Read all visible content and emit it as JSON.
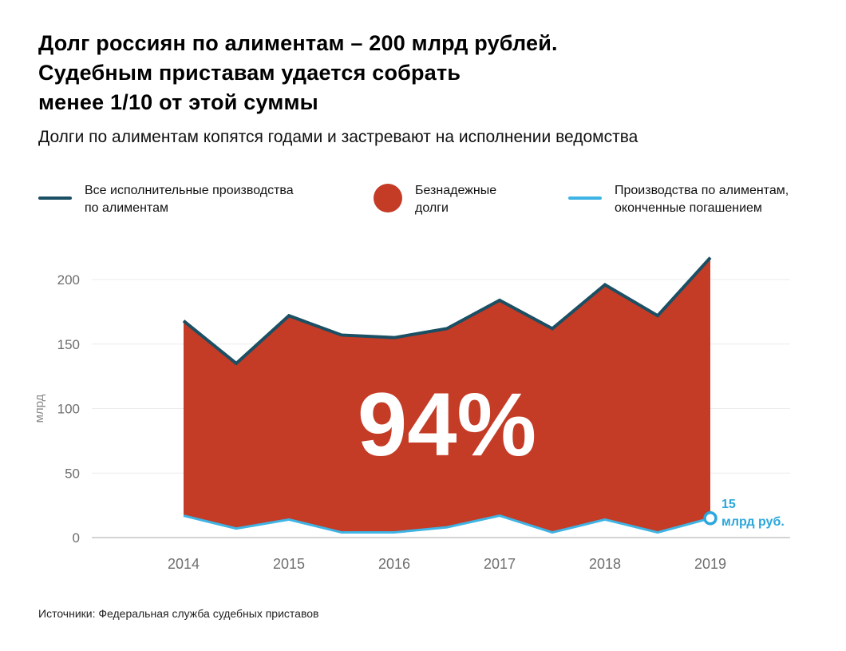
{
  "header": {
    "title": "Долг россиян по алиментам – 200 млрд рублей.\nСудебным приставам удается собрать\nменее 1/10 от этой суммы",
    "subtitle": "Долги по алиментам копятся годами и застревают на исполнении ведомства"
  },
  "legend": {
    "items": [
      {
        "label": "Все исполнительные производства\nпо алиментам",
        "swatch": "line",
        "color": "#1b4f63"
      },
      {
        "label": "Безнадежные\nдолги",
        "swatch": "circle",
        "color": "#c43b26"
      },
      {
        "label": "Производства по алиментам,\nоконченные погашением",
        "swatch": "line",
        "color": "#3eb4e4"
      }
    ]
  },
  "chart_data": {
    "type": "area",
    "x": [
      2014,
      2014.5,
      2015,
      2015.5,
      2016,
      2016.5,
      2017,
      2017.5,
      2018,
      2018.5,
      2019
    ],
    "series": [
      {
        "name": "Все исполнительные производства по алиментам",
        "color": "#1b4f63",
        "values": [
          168,
          135,
          172,
          157,
          155,
          162,
          184,
          162,
          196,
          172,
          217
        ]
      },
      {
        "name": "Производства по алиментам, оконченные погашением",
        "color": "#3eb4e4",
        "values": [
          17,
          7,
          14,
          4,
          4,
          8,
          17,
          4,
          14,
          4,
          15
        ]
      }
    ],
    "area": {
      "label": "94%",
      "fill": "#c43b26",
      "description": "Безнадежные долги — заливка между линиями"
    },
    "title": "",
    "xlabel": "",
    "ylabel": "млрд",
    "ylim": [
      0,
      220
    ],
    "yticks": [
      0,
      50,
      100,
      150,
      200
    ],
    "xticks": [
      "2014",
      "2015",
      "2016",
      "2017",
      "2018",
      "2019"
    ],
    "grid": true,
    "legend_position": "top",
    "annotation": {
      "value_line1": "15",
      "value_line2": "млрд руб.",
      "x": 2019,
      "y": 15,
      "color": "#2ba7dc"
    }
  },
  "footer": {
    "source": "Источники: Федеральная служба судебных приставов"
  }
}
